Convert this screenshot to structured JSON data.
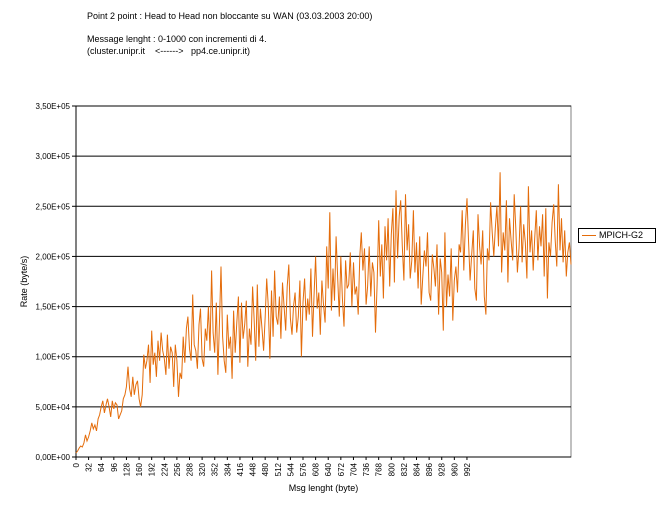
{
  "header": {
    "title": "Point 2 point : Head to Head non bloccante su WAN (03.03.2003 20:00)",
    "subtitle1": "Message lenght : 0-1000 con incrementi di 4.",
    "subtitle2": "(cluster.unipr.it    <------>   pp4.ce.unipr.it)"
  },
  "legend": {
    "label": "MPICH-G2"
  },
  "colors": {
    "series": "#e46c0a",
    "plot_bg": "#ffffff",
    "grid": "#000000"
  },
  "chart_data": {
    "type": "line",
    "title": "Point 2 point : Head to Head non bloccante su WAN (03.03.2003 20:00)",
    "xlabel": "Msg lenght (byte)",
    "ylabel": "Rate (byte/s)",
    "ylim": [
      0,
      350000
    ],
    "y_ticks": [
      0,
      50000,
      100000,
      150000,
      200000,
      250000,
      300000,
      350000
    ],
    "y_tick_labels": [
      "0,00E+00",
      "5,00E+04",
      "1,00E+05",
      "1,50E+05",
      "2,00E+05",
      "2,50E+05",
      "3,00E+05",
      "3,50E+05"
    ],
    "x_tick_labels": [
      "0",
      "32",
      "64",
      "96",
      "128",
      "160",
      "192",
      "224",
      "256",
      "288",
      "320",
      "352",
      "384",
      "416",
      "448",
      "480",
      "512",
      "544",
      "576",
      "608",
      "640",
      "672",
      "704",
      "736",
      "768",
      "800",
      "832",
      "864",
      "896",
      "928",
      "960",
      "992"
    ],
    "x_step": 4,
    "legend_position": "right",
    "series": [
      {
        "name": "MPICH-G2",
        "x_start": 0,
        "x_step": 4,
        "values": [
          4000,
          6000,
          9000,
          11000,
          10000,
          14000,
          22000,
          16000,
          20000,
          26000,
          34000,
          28000,
          32000,
          26000,
          38000,
          42000,
          50000,
          56000,
          44000,
          52000,
          58000,
          50000,
          40000,
          56000,
          48000,
          54000,
          52000,
          38000,
          42000,
          46000,
          58000,
          62000,
          70000,
          90000,
          68000,
          60000,
          80000,
          62000,
          72000,
          76000,
          58000,
          50000,
          62000,
          102000,
          88000,
          96000,
          112000,
          74000,
          126000,
          92000,
          104000,
          80000,
          116000,
          96000,
          124000,
          106000,
          98000,
          82000,
          122000,
          88000,
          110000,
          104000,
          70000,
          112000,
          96000,
          60000,
          84000,
          78000,
          120000,
          94000,
          128000,
          140000,
          108000,
          96000,
          162000,
          112000,
          106000,
          88000,
          132000,
          148000,
          98000,
          90000,
          128000,
          116000,
          150000,
          106000,
          186000,
          124000,
          104000,
          154000,
          82000,
          136000,
          190000,
          120000,
          96000,
          84000,
          142000,
          108000,
          120000,
          78000,
          146000,
          104000,
          134000,
          160000,
          94000,
          154000,
          118000,
          132000,
          156000,
          90000,
          128000,
          112000,
          170000,
          138000,
          96000,
          172000,
          110000,
          148000,
          128000,
          106000,
          140000,
          178000,
          150000,
          98000,
          166000,
          120000,
          186000,
          140000,
          132000,
          160000,
          118000,
          174000,
          150000,
          126000,
          170000,
          192000,
          138000,
          122000,
          150000,
          164000,
          124000,
          140000,
          176000,
          100000,
          154000,
          178000,
          136000,
          158000,
          142000,
          188000,
          120000,
          160000,
          200000,
          148000,
          164000,
          122000,
          176000,
          152000,
          134000,
          210000,
          168000,
          244000,
          146000,
          188000,
          156000,
          220000,
          178000,
          140000,
          200000,
          158000,
          130000,
          196000,
          168000,
          172000,
          204000,
          150000,
          194000,
          162000,
          170000,
          142000,
          200000,
          224000,
          186000,
          208000,
          152000,
          170000,
          210000,
          160000,
          194000,
          184000,
          124000,
          172000,
          236000,
          180000,
          212000,
          158000,
          230000,
          196000,
          238000,
          170000,
          222000,
          248000,
          174000,
          266000,
          198000,
          240000,
          256000,
          210000,
          176000,
          262000,
          206000,
          232000,
          178000,
          196000,
          246000,
          184000,
          214000,
          168000,
          220000,
          152000,
          180000,
          206000,
          190000,
          224000,
          164000,
          156000,
          202000,
          188000,
          170000,
          212000,
          142000,
          198000,
          184000,
          126000,
          224000,
          150000,
          182000,
          160000,
          208000,
          136000,
          176000,
          190000,
          164000,
          212000,
          204000,
          246000,
          186000,
          232000,
          258000,
          216000,
          176000,
          202000,
          226000,
          168000,
          156000,
          242000,
          210000,
          192000,
          226000,
          160000,
          142000,
          208000,
          196000,
          254000,
          224000,
          200000,
          228000,
          250000,
          210000,
          284000,
          184000,
          224000,
          206000,
          256000,
          174000,
          238000,
          216000,
          196000,
          262000,
          228000,
          184000,
          208000,
          250000,
          194000,
          232000,
          214000,
          178000,
          270000,
          204000,
          226000,
          186000,
          218000,
          246000,
          196000,
          230000,
          210000,
          242000,
          180000,
          248000,
          158000,
          214000,
          200000,
          234000,
          252000,
          216000,
          190000,
          272000,
          206000,
          238000,
          194000,
          226000,
          180000,
          204000,
          214000,
          192000
        ]
      }
    ]
  }
}
